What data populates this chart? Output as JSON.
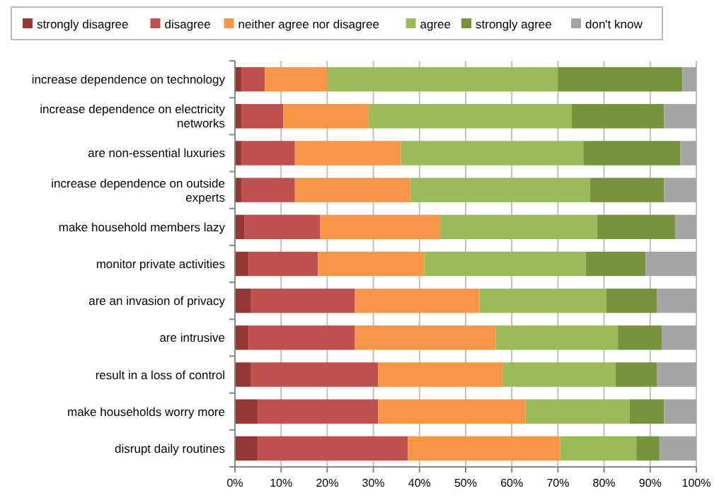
{
  "chart_data": {
    "type": "bar",
    "orientation": "horizontal",
    "stacked": true,
    "categories": [
      "increase dependence on technology",
      "increase dependence on electricity networks",
      "are non-essential luxuries",
      "increase dependence on outside experts",
      "make household members lazy",
      "monitor private activities",
      "are an invasion of privacy",
      "are intrusive",
      "result in a loss of control",
      "make households worry more",
      "disrupt daily routines"
    ],
    "series": [
      {
        "name": "strongly disagree",
        "color": "#953735",
        "values": [
          1.5,
          1.5,
          1.5,
          1.5,
          2,
          3,
          3.5,
          3,
          3.5,
          5,
          5
        ]
      },
      {
        "name": "disagree",
        "color": "#c0504d",
        "values": [
          5,
          9,
          11.5,
          11.5,
          16.5,
          15,
          22.5,
          23,
          27.5,
          26,
          32.5
        ]
      },
      {
        "name": "neither agree nor disagree",
        "color": "#f79646",
        "values": [
          13.5,
          18.5,
          23,
          25,
          26,
          23,
          27,
          30.5,
          27,
          32,
          33
        ]
      },
      {
        "name": "agree",
        "color": "#9bbb59",
        "values": [
          50,
          44,
          39.5,
          39,
          34,
          35,
          27.5,
          26.5,
          24.5,
          22.5,
          16.5
        ]
      },
      {
        "name": "strongly agree",
        "color": "#77933c",
        "values": [
          27,
          20,
          21,
          16,
          17,
          13,
          11,
          9.5,
          9,
          7.5,
          5
        ]
      },
      {
        "name": "don't know",
        "color": "#a5a5a5",
        "values": [
          3,
          7,
          3.5,
          7,
          4.5,
          11,
          8.5,
          7.5,
          8.5,
          7,
          8
        ]
      }
    ],
    "xlim": [
      0,
      100
    ],
    "xticks": [
      {
        "value": 0,
        "label": "0%"
      },
      {
        "value": 10,
        "label": "10%"
      },
      {
        "value": 20,
        "label": "20%"
      },
      {
        "value": 30,
        "label": "30%"
      },
      {
        "value": 40,
        "label": "40%"
      },
      {
        "value": 50,
        "label": "50%"
      },
      {
        "value": 60,
        "label": "60%"
      },
      {
        "value": 70,
        "label": "70%"
      },
      {
        "value": 80,
        "label": "80%"
      },
      {
        "value": 90,
        "label": "90%"
      },
      {
        "value": 100,
        "label": "100%"
      }
    ],
    "grid": "x",
    "legend": "top"
  }
}
